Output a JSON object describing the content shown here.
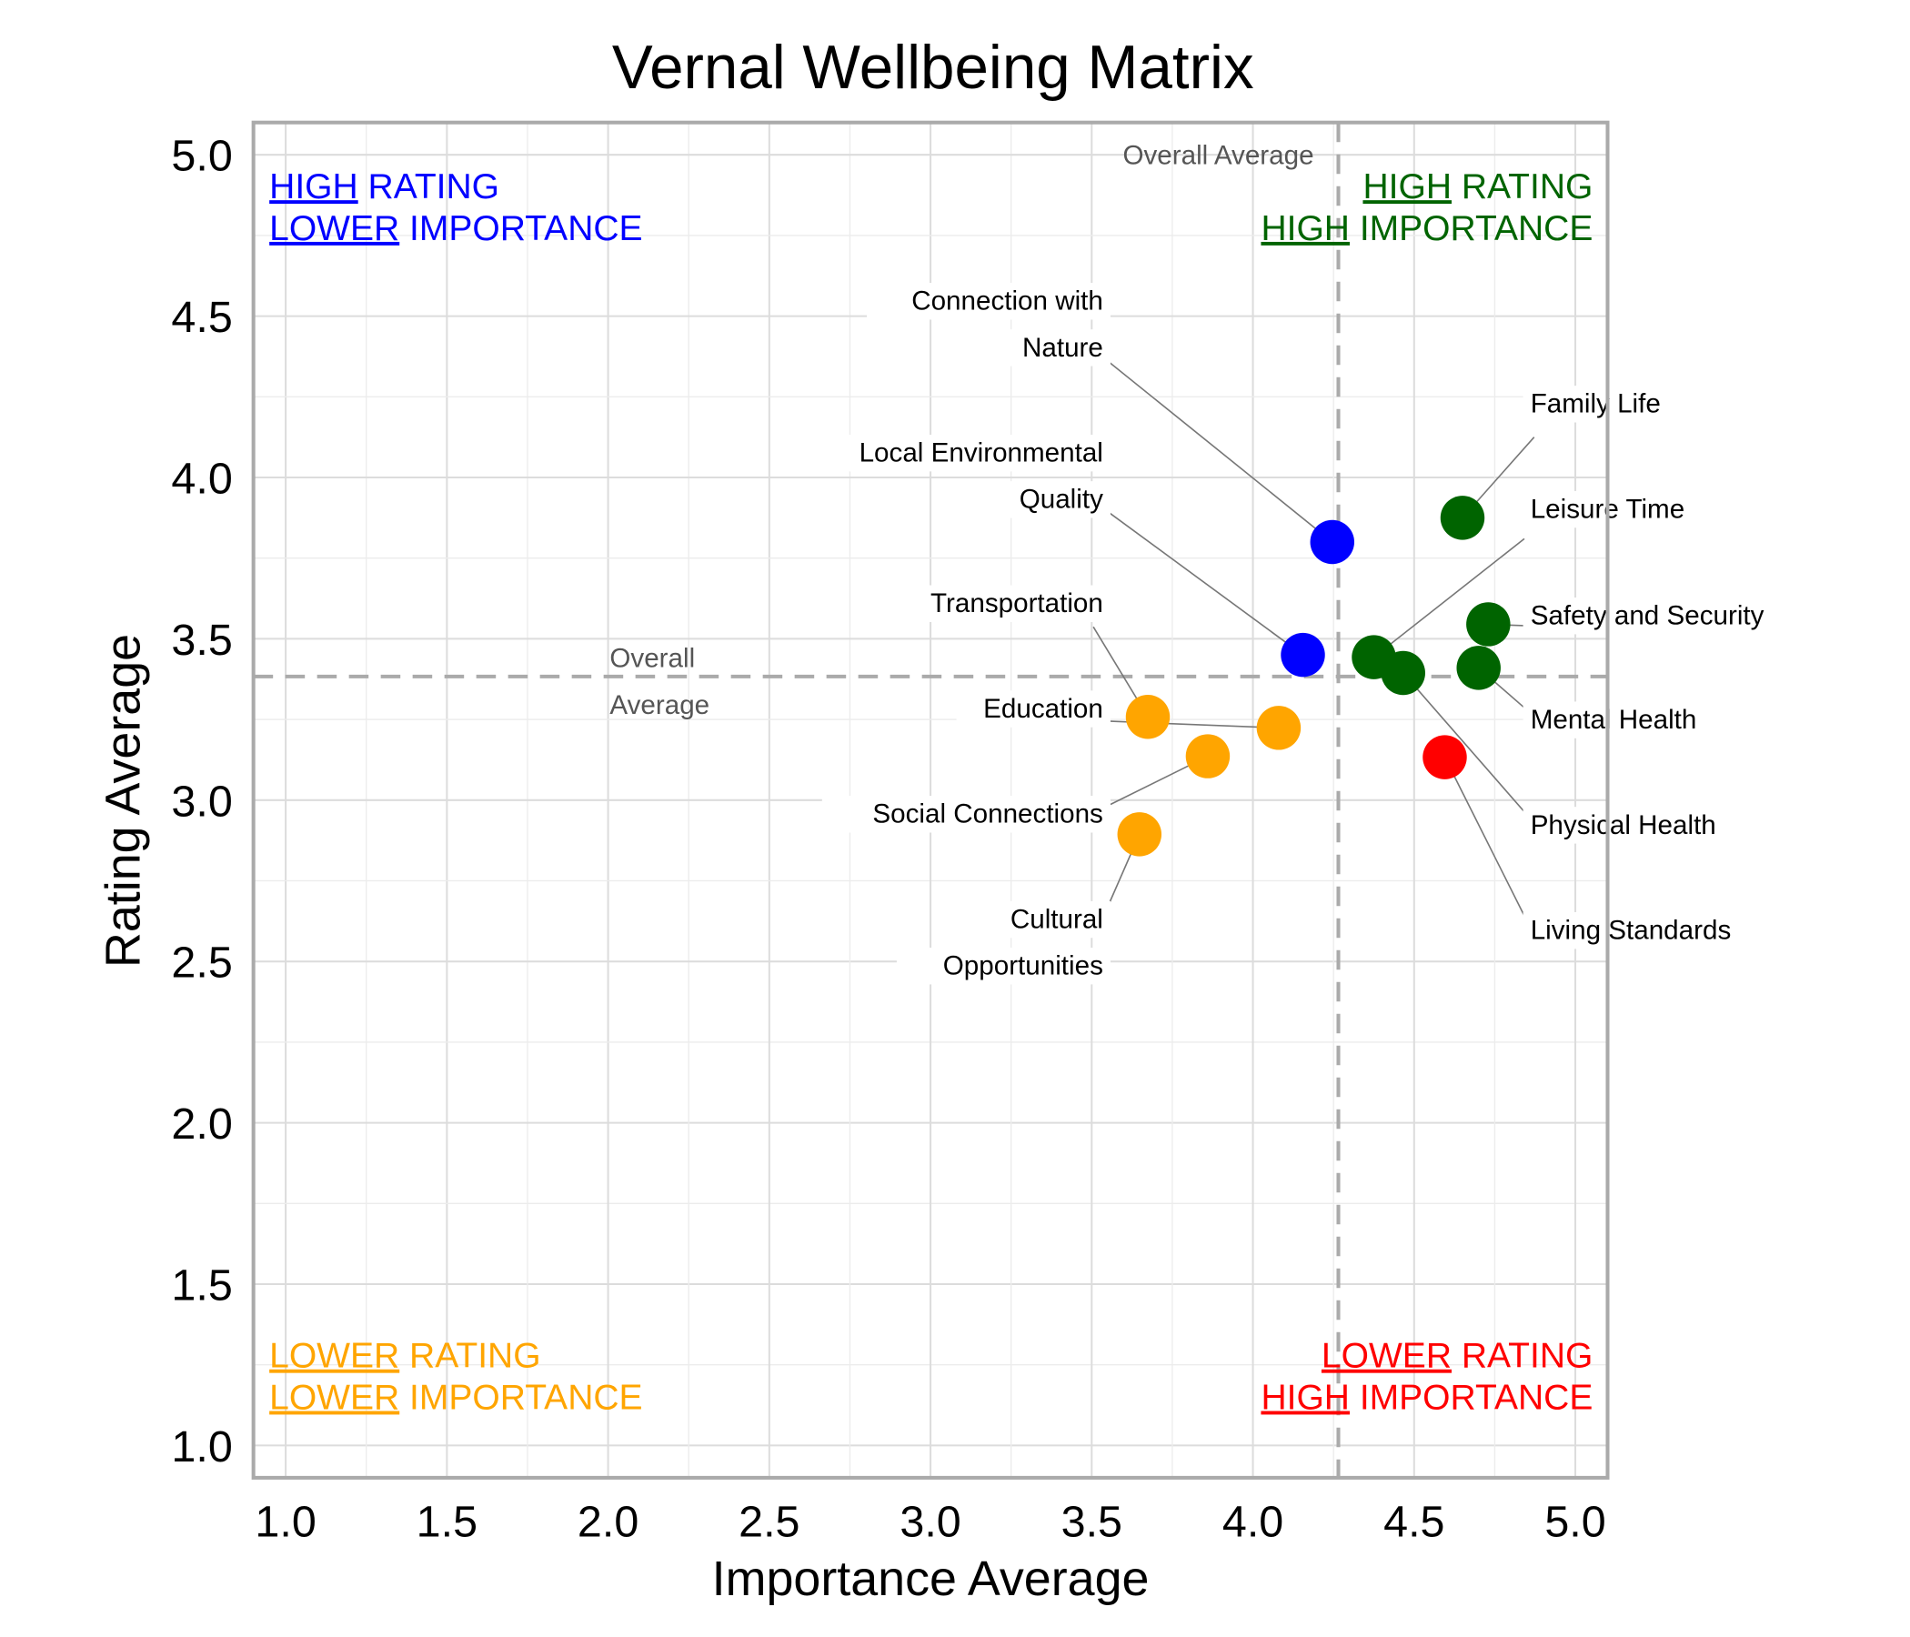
{
  "chart_data": {
    "type": "scatter",
    "title": "Vernal Wellbeing Matrix",
    "xlabel": "Importance Average",
    "ylabel": "Rating Average",
    "xlim": [
      0.9,
      5.1
    ],
    "ylim": [
      0.9,
      5.1
    ],
    "xticks": [
      "1.0",
      "1.5",
      "2.0",
      "2.5",
      "3.0",
      "3.5",
      "4.0",
      "4.5",
      "5.0"
    ],
    "yticks": [
      "1.0",
      "1.5",
      "2.0",
      "2.5",
      "3.0",
      "3.5",
      "4.0",
      "4.5",
      "5.0"
    ],
    "grid": true,
    "reference_lines": {
      "x_average": 4.265,
      "y_average": 3.383,
      "x_label": "Overall Average",
      "y_label_lines": [
        "Overall",
        "Average"
      ]
    },
    "quadrants": [
      {
        "id": "top-left",
        "color": "#0000ff",
        "lines": [
          [
            "HIGH",
            " RATING"
          ],
          [
            "LOWER",
            " IMPORTANCE"
          ]
        ]
      },
      {
        "id": "top-right",
        "color": "#006400",
        "lines": [
          [
            "HIGH",
            " RATING"
          ],
          [
            "HIGH",
            " IMPORTANCE"
          ]
        ]
      },
      {
        "id": "bottom-left",
        "color": "#ffa500",
        "lines": [
          [
            "LOWER",
            " RATING"
          ],
          [
            "LOWER",
            " IMPORTANCE"
          ]
        ]
      },
      {
        "id": "bottom-right",
        "color": "#ff0000",
        "lines": [
          [
            "LOWER",
            " RATING"
          ],
          [
            "HIGH",
            " IMPORTANCE"
          ]
        ]
      }
    ],
    "points": [
      {
        "label": [
          "Connection with",
          "Nature"
        ],
        "x": 4.246,
        "y": 3.8,
        "color": "#0000ff"
      },
      {
        "label": [
          "Local Environmental",
          "Quality"
        ],
        "x": 4.155,
        "y": 3.45,
        "color": "#0000ff"
      },
      {
        "label": [
          "Family Life"
        ],
        "x": 4.65,
        "y": 3.875,
        "color": "#006400"
      },
      {
        "label": [
          "Leisure Time"
        ],
        "x": 4.375,
        "y": 3.443,
        "color": "#006400"
      },
      {
        "label": [
          "Safety and Security"
        ],
        "x": 4.73,
        "y": 3.545,
        "color": "#006400"
      },
      {
        "label": [
          "Mental Health"
        ],
        "x": 4.7,
        "y": 3.41,
        "color": "#006400"
      },
      {
        "label": [
          "Physical Health"
        ],
        "x": 4.466,
        "y": 3.394,
        "color": "#006400"
      },
      {
        "label": [
          "Living Standards"
        ],
        "x": 4.595,
        "y": 3.133,
        "color": "#ff0000"
      },
      {
        "label": [
          "Transportation"
        ],
        "x": 3.674,
        "y": 3.258,
        "color": "#ffa500"
      },
      {
        "label": [
          "Education"
        ],
        "x": 4.08,
        "y": 3.224,
        "color": "#ffa500"
      },
      {
        "label": [
          "Social Connections"
        ],
        "x": 3.86,
        "y": 3.136,
        "color": "#ffa500"
      },
      {
        "label": [
          "Cultural",
          "Opportunities"
        ],
        "x": 3.648,
        "y": 2.894,
        "color": "#ffa500"
      }
    ]
  }
}
